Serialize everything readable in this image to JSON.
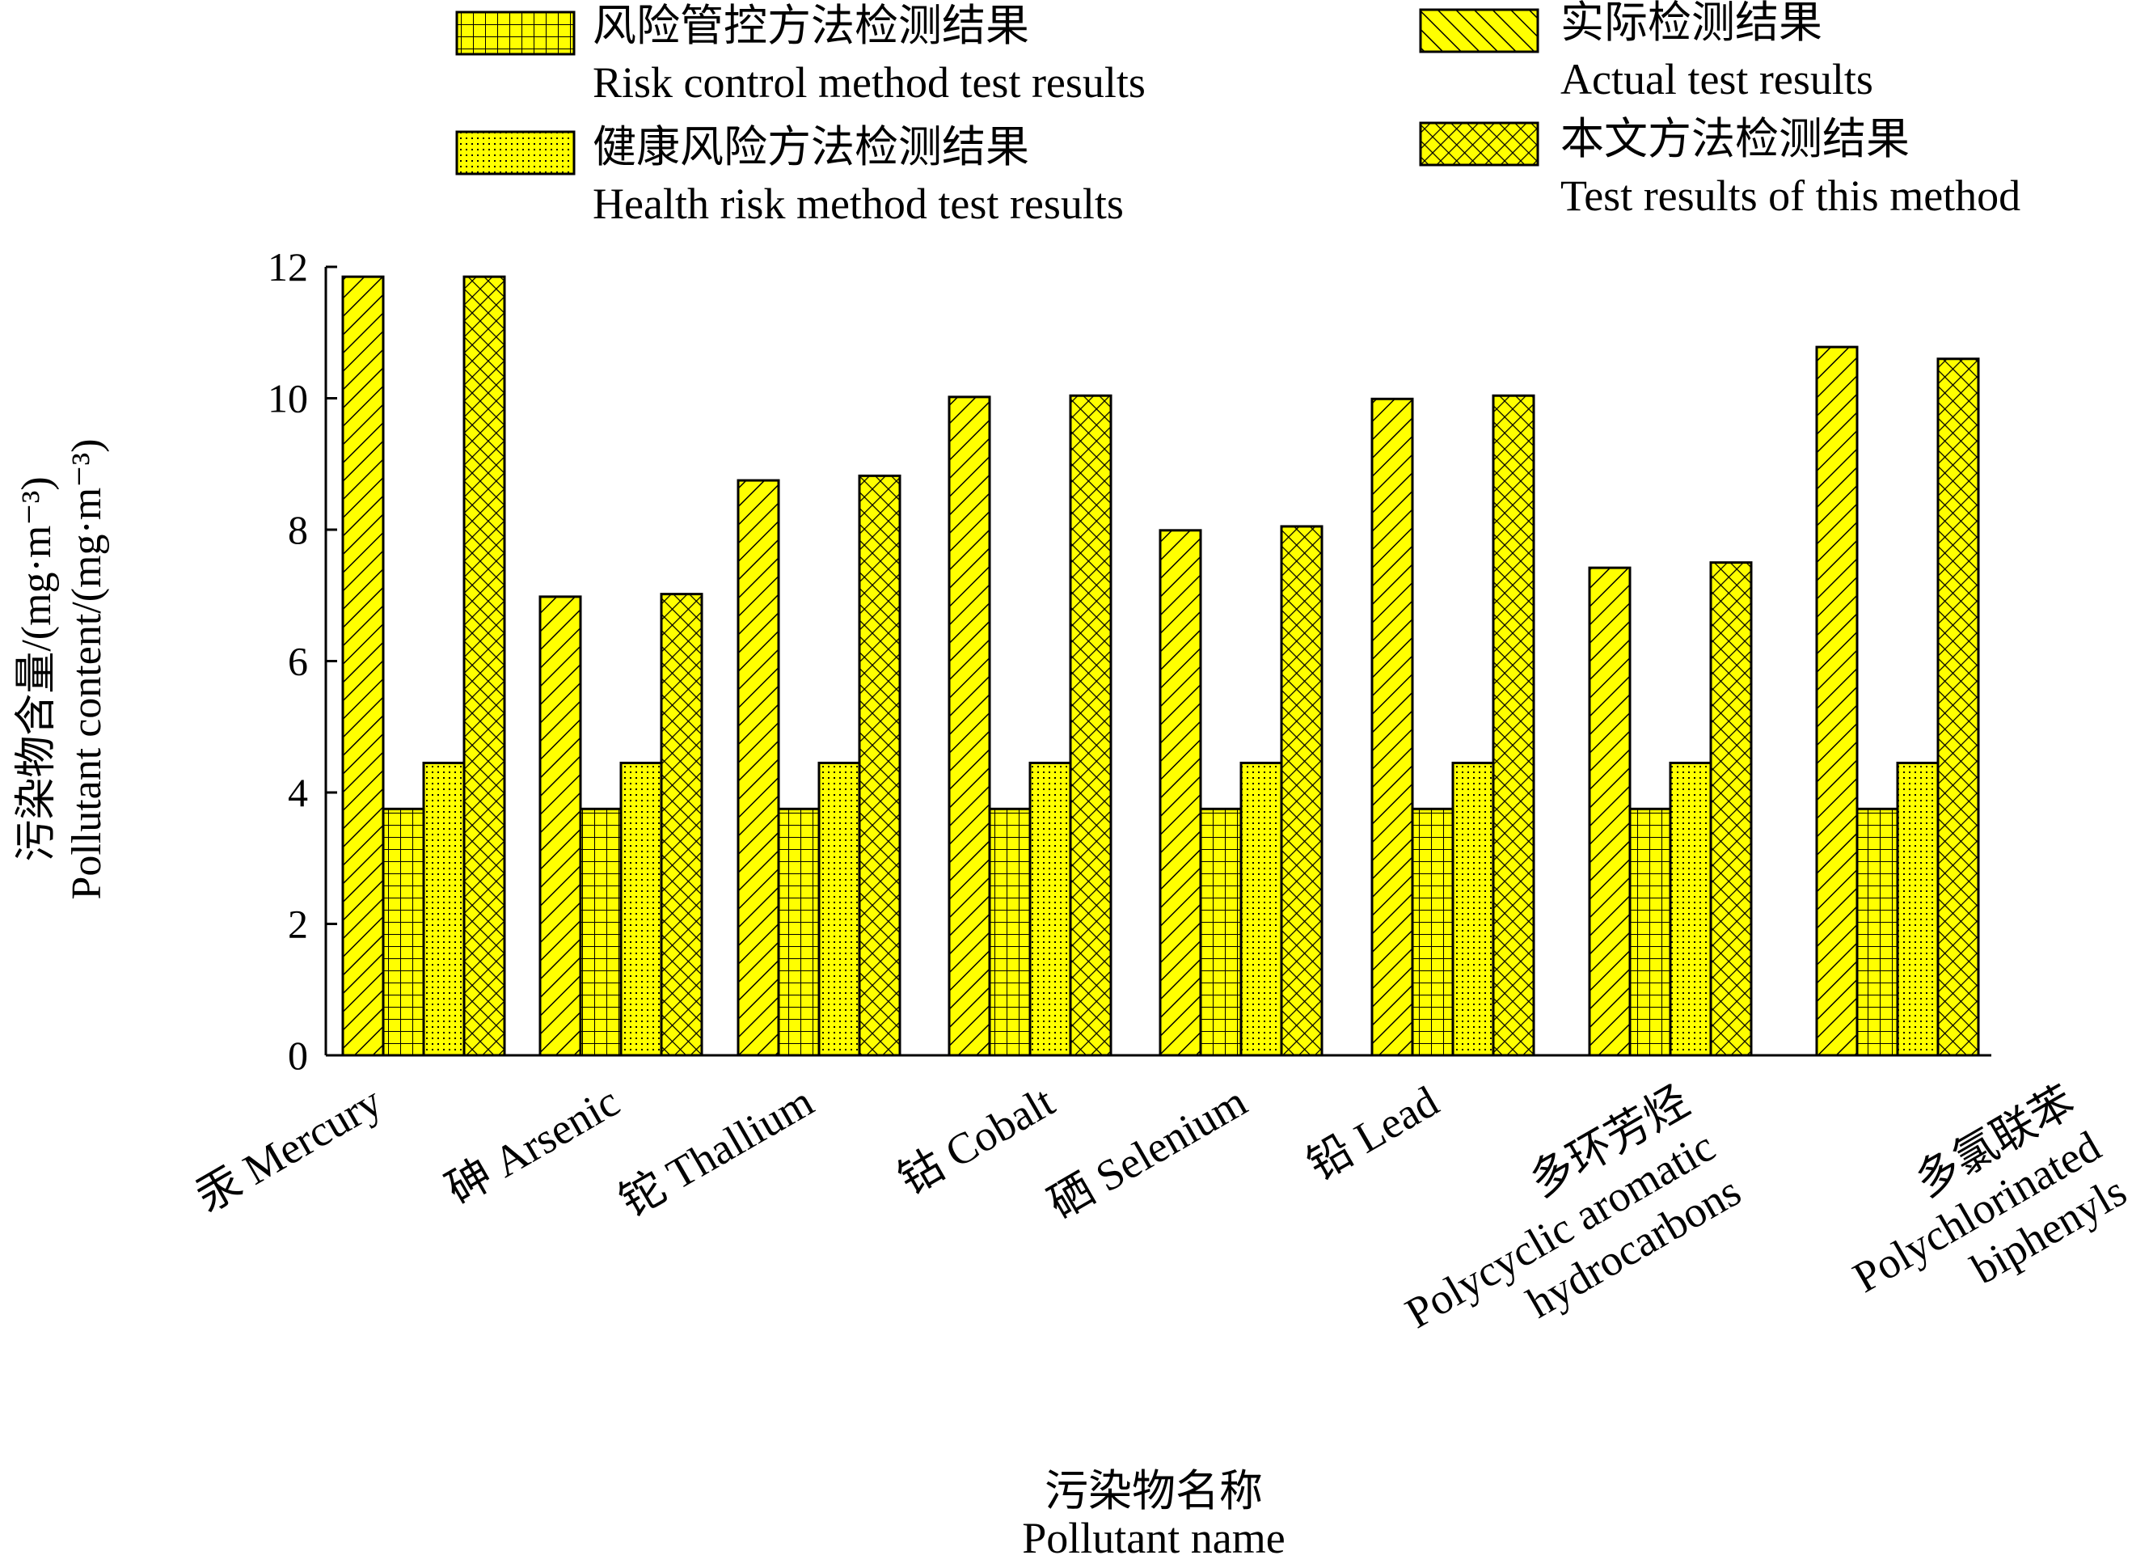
{
  "chart_data": {
    "type": "bar",
    "title": "",
    "xlabel_lines": [
      "污染物名称",
      "Pollutant name"
    ],
    "ylabel_lines": [
      "污染物含量/(mg·m⁻³)",
      "Pollutant content/(mg·m⁻³)"
    ],
    "ylim": [
      0,
      12
    ],
    "yticks": [
      "0",
      "2",
      "4",
      "6",
      "8",
      "10",
      "12"
    ],
    "grid": false,
    "legend_position": "top",
    "legend": [
      {
        "series_index": 1,
        "lines": [
          "风险管控方法检测结果",
          "Risk control method test results"
        ]
      },
      {
        "series_index": 0,
        "lines": [
          "实际检测结果",
          "Actual test results"
        ]
      },
      {
        "series_index": 2,
        "lines": [
          "健康风险方法检测结果",
          "Health risk method test results"
        ]
      },
      {
        "series_index": 3,
        "lines": [
          "本文方法检测结果",
          "Test results of this method"
        ]
      }
    ],
    "categories": [
      {
        "label": "汞 Mercury",
        "lines": [
          "汞 Mercury"
        ]
      },
      {
        "label": "砷 Arsenic",
        "lines": [
          "砷 Arsenic"
        ]
      },
      {
        "label": "铊 Thallium",
        "lines": [
          "铊 Thallium"
        ]
      },
      {
        "label": "钴 Cobalt",
        "lines": [
          "钴 Cobalt"
        ]
      },
      {
        "label": "硒 Selenium",
        "lines": [
          "硒 Selenium"
        ]
      },
      {
        "label": "铅 Lead",
        "lines": [
          "铅 Lead"
        ]
      },
      {
        "label": "多环芳烃 Polycyclic aromatic hydrocarbons",
        "lines": [
          "多环芳烃",
          "Polycyclic aromatic",
          "hydrocarbons"
        ]
      },
      {
        "label": "多氯联苯 Polychlorinated biphenyls",
        "lines": [
          "多氯联苯",
          "Polychlorinated",
          "biphenyls"
        ]
      }
    ],
    "series": [
      {
        "name": "实际检测结果 Actual test results",
        "pattern": "diag-right",
        "values": [
          11.85,
          6.98,
          8.75,
          10.02,
          7.99,
          9.99,
          7.42,
          10.78
        ]
      },
      {
        "name": "风险管控方法检测结果 Risk control method test results",
        "pattern": "grid",
        "values": [
          3.75,
          3.75,
          3.75,
          3.75,
          3.75,
          3.75,
          3.75,
          3.75
        ]
      },
      {
        "name": "健康风险方法检测结果 Health risk method test results",
        "pattern": "dots",
        "values": [
          4.45,
          4.45,
          4.45,
          4.45,
          4.45,
          4.45,
          4.45,
          4.45
        ]
      },
      {
        "name": "本文方法检测结果 Test results of this method",
        "pattern": "crosshatch",
        "values": [
          11.85,
          7.02,
          8.82,
          10.04,
          8.05,
          10.04,
          7.5,
          10.6
        ]
      }
    ],
    "colors": {
      "fill": "#ffff00",
      "stroke": "#000000"
    }
  }
}
